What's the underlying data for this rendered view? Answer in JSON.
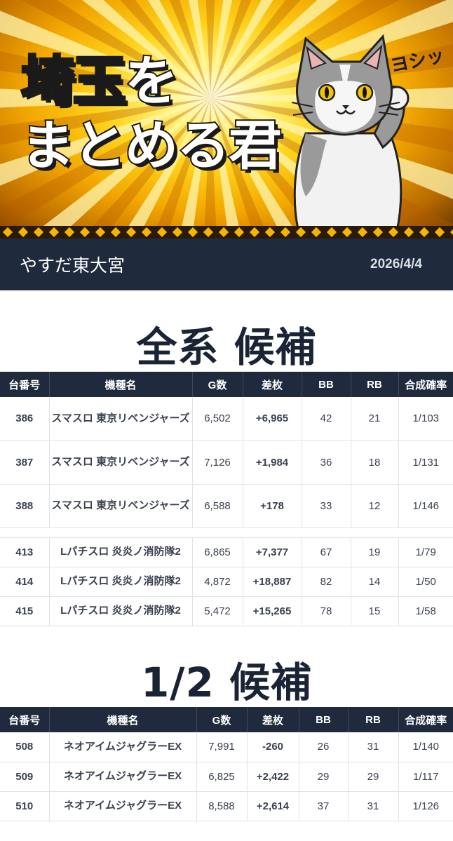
{
  "banner": {
    "title_line1_kanji": "埼玉",
    "title_line1_kana": "を",
    "title_line2": "まとめる君",
    "exclaim": "ヨシッ"
  },
  "store": {
    "name": "やすだ東大宮",
    "date": "2026/4/4"
  },
  "columns": [
    "台番号",
    "機種名",
    "G数",
    "差枚",
    "BB",
    "RB",
    "合成確率"
  ],
  "section1": {
    "title": "全系 候補",
    "group1": [
      {
        "no": "386",
        "model": "スマスロ 東京リベンジャーズ",
        "g": "6,502",
        "diff": "+6,965",
        "bb": "42",
        "rb": "21",
        "rate": "1/103"
      },
      {
        "no": "387",
        "model": "スマスロ 東京リベンジャーズ",
        "g": "7,126",
        "diff": "+1,984",
        "bb": "36",
        "rb": "18",
        "rate": "1/131"
      },
      {
        "no": "388",
        "model": "スマスロ 東京リベンジャーズ",
        "g": "6,588",
        "diff": "+178",
        "bb": "33",
        "rb": "12",
        "rate": "1/146"
      }
    ],
    "group2": [
      {
        "no": "413",
        "model": "Lパチスロ 炎炎ノ消防隊2",
        "g": "6,865",
        "diff": "+7,377",
        "bb": "67",
        "rb": "19",
        "rate": "1/79"
      },
      {
        "no": "414",
        "model": "Lパチスロ 炎炎ノ消防隊2",
        "g": "4,872",
        "diff": "+18,887",
        "bb": "82",
        "rb": "14",
        "rate": "1/50"
      },
      {
        "no": "415",
        "model": "Lパチスロ 炎炎ノ消防隊2",
        "g": "5,472",
        "diff": "+15,265",
        "bb": "78",
        "rb": "15",
        "rate": "1/58"
      }
    ]
  },
  "section2": {
    "title": "1/2 候補",
    "rows": [
      {
        "no": "508",
        "model": "ネオアイムジャグラーEX",
        "g": "7,991",
        "diff": "-260",
        "bb": "26",
        "rb": "31",
        "rate": "1/140"
      },
      {
        "no": "509",
        "model": "ネオアイムジャグラーEX",
        "g": "6,825",
        "diff": "+2,422",
        "bb": "29",
        "rb": "29",
        "rate": "1/117"
      },
      {
        "no": "510",
        "model": "ネオアイムジャグラーEX",
        "g": "8,588",
        "diff": "+2,614",
        "bb": "37",
        "rb": "31",
        "rate": "1/126"
      }
    ]
  },
  "colors": {
    "header_bg": "#1f2a3c",
    "positive": "#2457d6",
    "negative": "#e02424",
    "title_orange": "#ff7a1a"
  },
  "icons": [
    "cat-mascot-illustration"
  ]
}
